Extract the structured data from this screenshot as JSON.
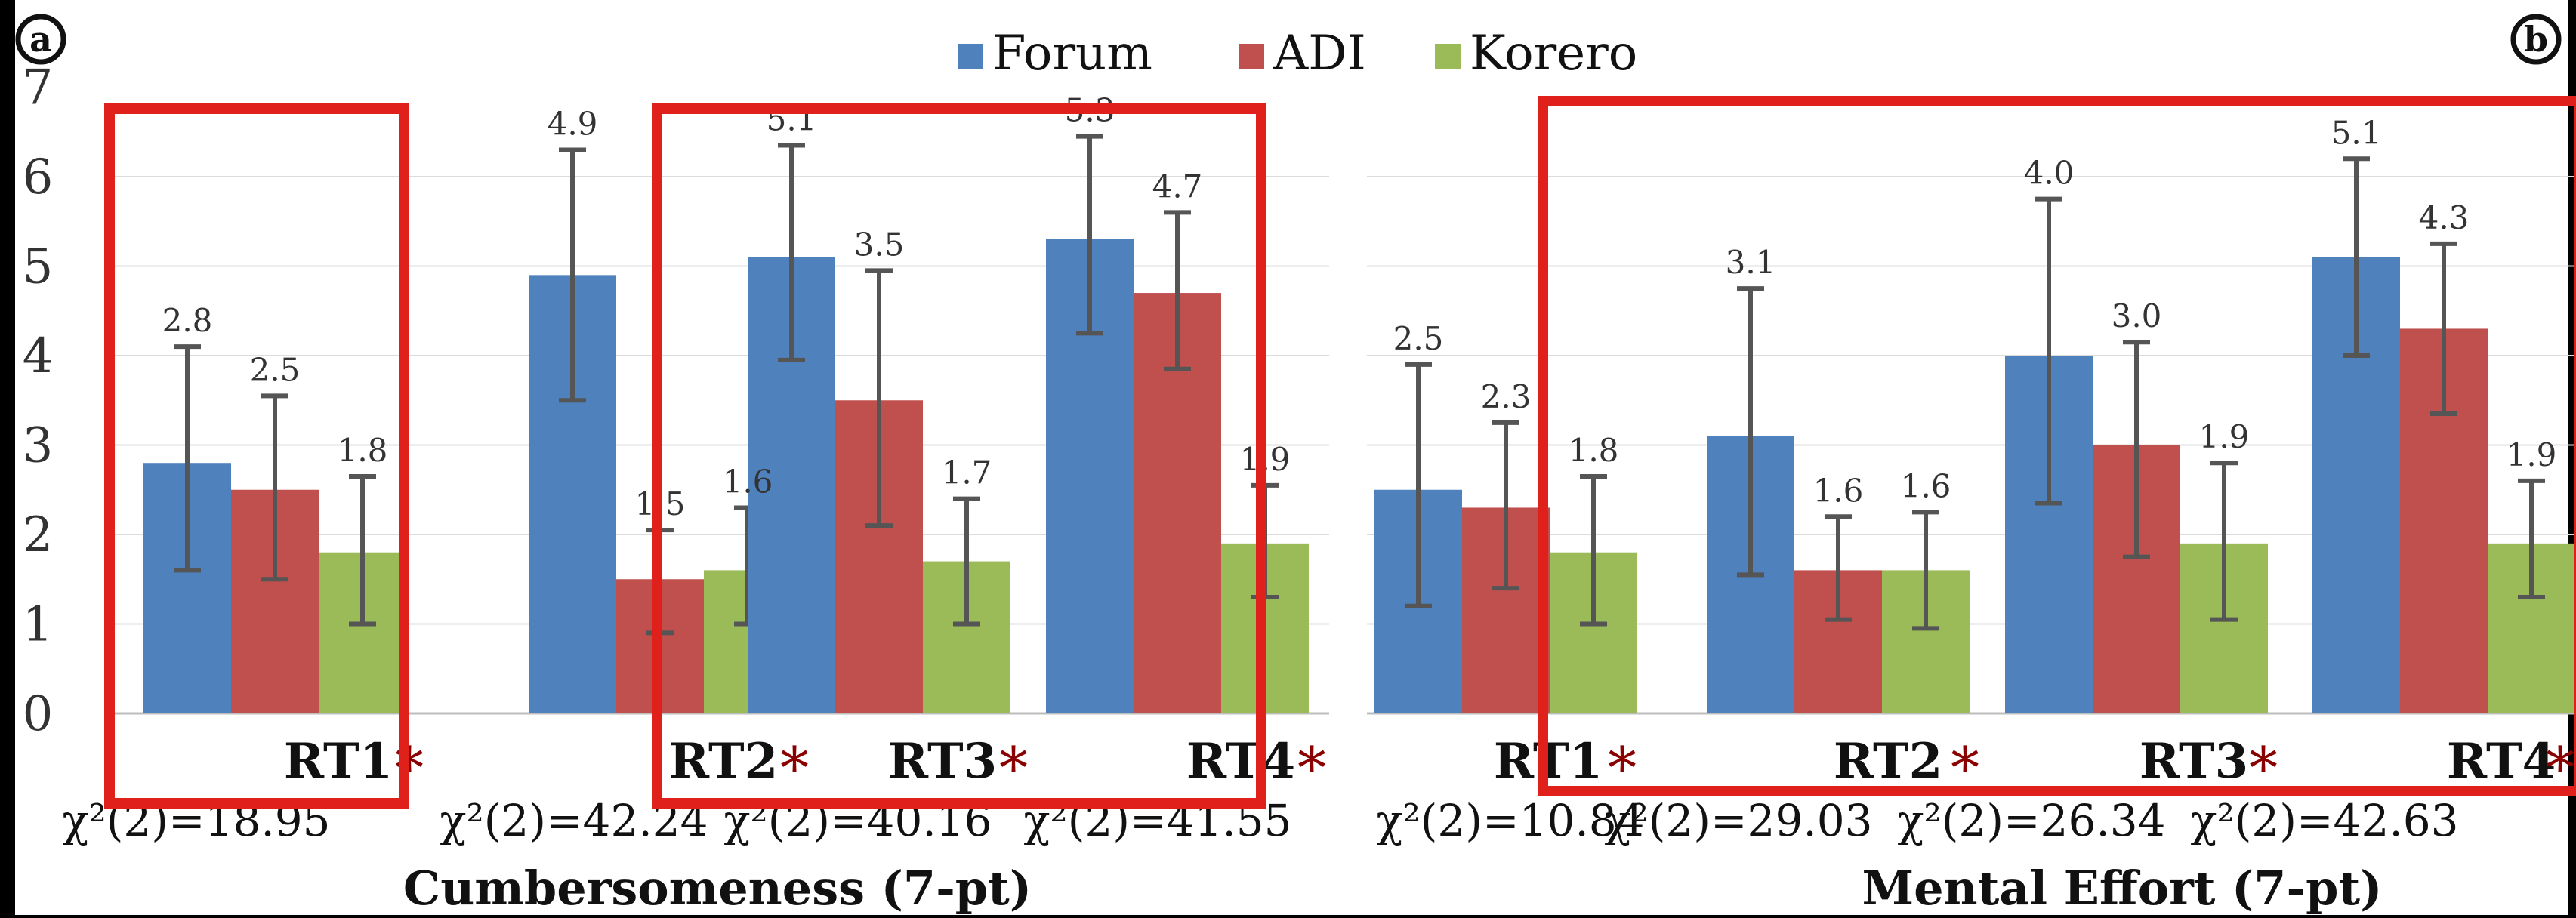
{
  "legend": [
    {
      "name": "Forum",
      "color": "#4f81bd"
    },
    {
      "name": "ADI",
      "color": "#c0504d"
    },
    {
      "name": "Korero",
      "color": "#9bbb59"
    }
  ],
  "panel_labels": [
    "a",
    "b"
  ],
  "significance_marker": "*",
  "highlight_color": "#e0201a",
  "chart_data": [
    {
      "type": "bar",
      "title": "Cumbersomeness (7-pt)",
      "ylim": [
        0,
        7
      ],
      "yticks": [
        "0",
        "1",
        "2",
        "3",
        "4",
        "5",
        "6",
        "7"
      ],
      "grid": true,
      "legend_position": "top",
      "categories": [
        "RT1",
        "RT2",
        "RT3",
        "RT4"
      ],
      "stats": [
        "χ²(2)=18.95",
        "χ²(2)=42.24",
        "χ²(2)=40.16",
        "χ²(2)=41.55"
      ],
      "significant": [
        true,
        true,
        true,
        true
      ],
      "series": [
        {
          "name": "Forum",
          "values": [
            2.8,
            4.9,
            5.1,
            5.3
          ],
          "labels": [
            "2.8",
            "4.9",
            "5.1",
            "5.3"
          ],
          "err_low": [
            1.6,
            3.5,
            3.95,
            4.25
          ],
          "err_high": [
            4.1,
            6.3,
            6.35,
            6.45
          ]
        },
        {
          "name": "ADI",
          "values": [
            2.5,
            1.5,
            3.5,
            4.7
          ],
          "labels": [
            "2.5",
            "1.5",
            "3.5",
            "4.7"
          ],
          "err_low": [
            1.5,
            0.9,
            2.1,
            3.85
          ],
          "err_high": [
            3.55,
            2.05,
            4.95,
            5.6
          ]
        },
        {
          "name": "Korero",
          "values": [
            1.8,
            1.6,
            1.7,
            1.9
          ],
          "labels": [
            "1.8",
            "1.6",
            "1.7",
            "1.9"
          ],
          "err_low": [
            1.0,
            1.0,
            1.0,
            1.3
          ],
          "err_high": [
            2.65,
            2.3,
            2.4,
            2.55
          ]
        }
      ],
      "highlight_groups": [
        [
          0
        ],
        [
          2,
          3
        ]
      ]
    },
    {
      "type": "bar",
      "title": "Mental Effort (7-pt)",
      "ylim": [
        0,
        7
      ],
      "grid": true,
      "categories": [
        "RT1",
        "RT2",
        "RT3",
        "RT4"
      ],
      "stats": [
        "χ²(2)=10.84",
        "χ²(2)=29.03",
        "χ²(2)=26.34",
        "χ²(2)=42.63"
      ],
      "significant": [
        true,
        true,
        true,
        true
      ],
      "series": [
        {
          "name": "Forum",
          "values": [
            2.5,
            3.1,
            4.0,
            5.1
          ],
          "labels": [
            "2.5",
            "3.1",
            "4.0",
            "5.1"
          ],
          "err_low": [
            1.2,
            1.55,
            2.35,
            4.0
          ],
          "err_high": [
            3.9,
            4.75,
            5.75,
            6.2
          ]
        },
        {
          "name": "ADI",
          "values": [
            2.3,
            1.6,
            3.0,
            4.3
          ],
          "labels": [
            "2.3",
            "1.6",
            "3.0",
            "4.3"
          ],
          "err_low": [
            1.4,
            1.05,
            1.75,
            3.35
          ],
          "err_high": [
            3.25,
            2.2,
            4.15,
            5.25
          ]
        },
        {
          "name": "Korero",
          "values": [
            1.8,
            1.6,
            1.9,
            1.9
          ],
          "labels": [
            "1.8",
            "1.6",
            "1.9",
            "1.9"
          ],
          "err_low": [
            1.0,
            0.95,
            1.05,
            1.3
          ],
          "err_high": [
            2.65,
            2.25,
            2.8,
            2.6
          ]
        }
      ],
      "highlight_groups": [
        [
          1,
          2,
          3
        ]
      ]
    }
  ]
}
